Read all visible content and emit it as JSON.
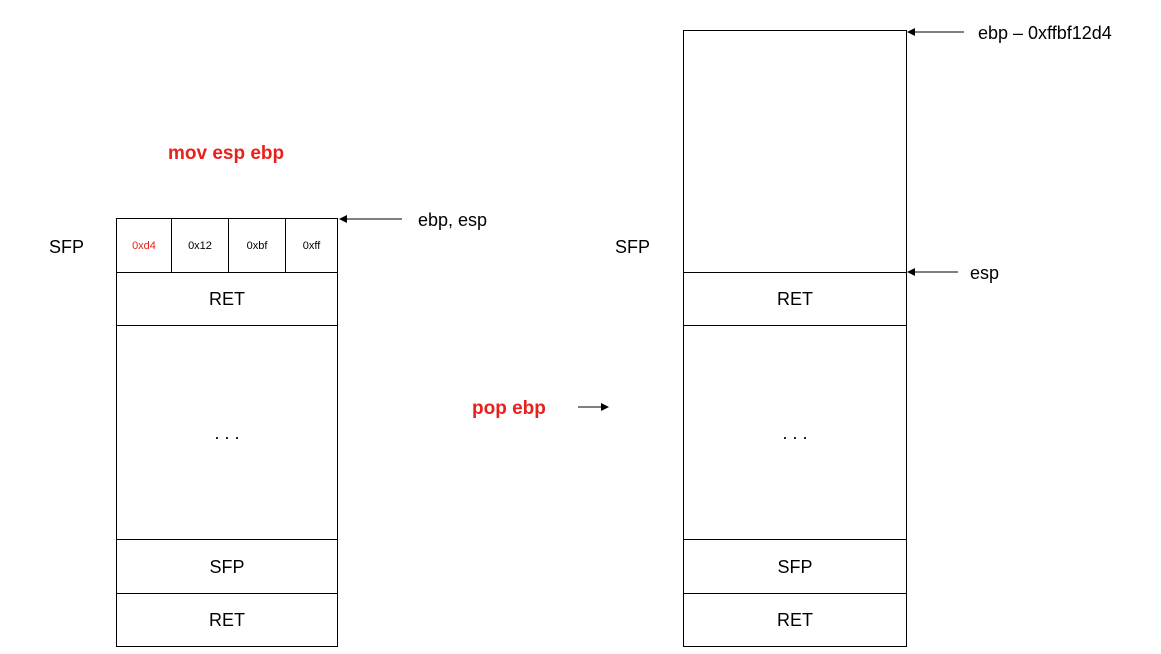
{
  "colors": {
    "accent_red": "#e8211c",
    "stroke": "#000000"
  },
  "left_stack": {
    "title": "mov esp ebp",
    "side_label": "SFP",
    "bytes": [
      "0xd4",
      "0x12",
      "0xbf",
      "0xff"
    ],
    "pointer_label": "ebp, esp",
    "ret_label": "RET",
    "ellipsis": ". . .",
    "bottom_sfp_label": "SFP",
    "bottom_ret_label": "RET"
  },
  "middle": {
    "transition_label": "pop ebp"
  },
  "right_stack": {
    "top_pointer_label": "ebp – 0xffbf12d4",
    "side_label": "SFP",
    "esp_label": "esp",
    "ret_label": "RET",
    "ellipsis": ". . .",
    "bottom_sfp_label": "SFP",
    "bottom_ret_label": "RET"
  }
}
